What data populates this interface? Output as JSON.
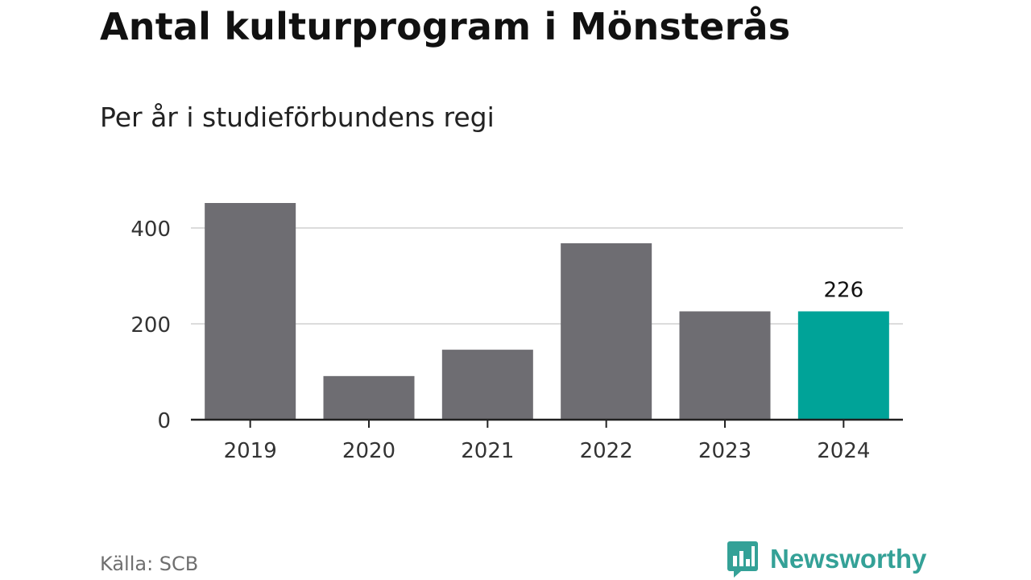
{
  "title": "Antal kulturprogram i Mönsterås",
  "subtitle": "Per år i studieförbundens regi",
  "source": "Källa: SCB",
  "brand": {
    "name": "Newsworthy",
    "icon": "bar-chart-speech-bubble-icon"
  },
  "colors": {
    "bar": "#6e6d72",
    "highlight": "#00a398",
    "grid": "#dcdcdc",
    "axis": "#222222",
    "brand": "#34a197"
  },
  "chart_data": {
    "type": "bar",
    "categories": [
      "2019",
      "2020",
      "2021",
      "2022",
      "2023",
      "2024"
    ],
    "values": [
      452,
      91,
      146,
      368,
      226,
      226
    ],
    "highlight_index": 5,
    "data_labels": [
      {
        "index": 5,
        "text": "226"
      }
    ],
    "yticks": [
      0,
      200,
      400
    ],
    "ylim": [
      0,
      452
    ],
    "grid": true,
    "xlabel": "",
    "ylabel": ""
  }
}
